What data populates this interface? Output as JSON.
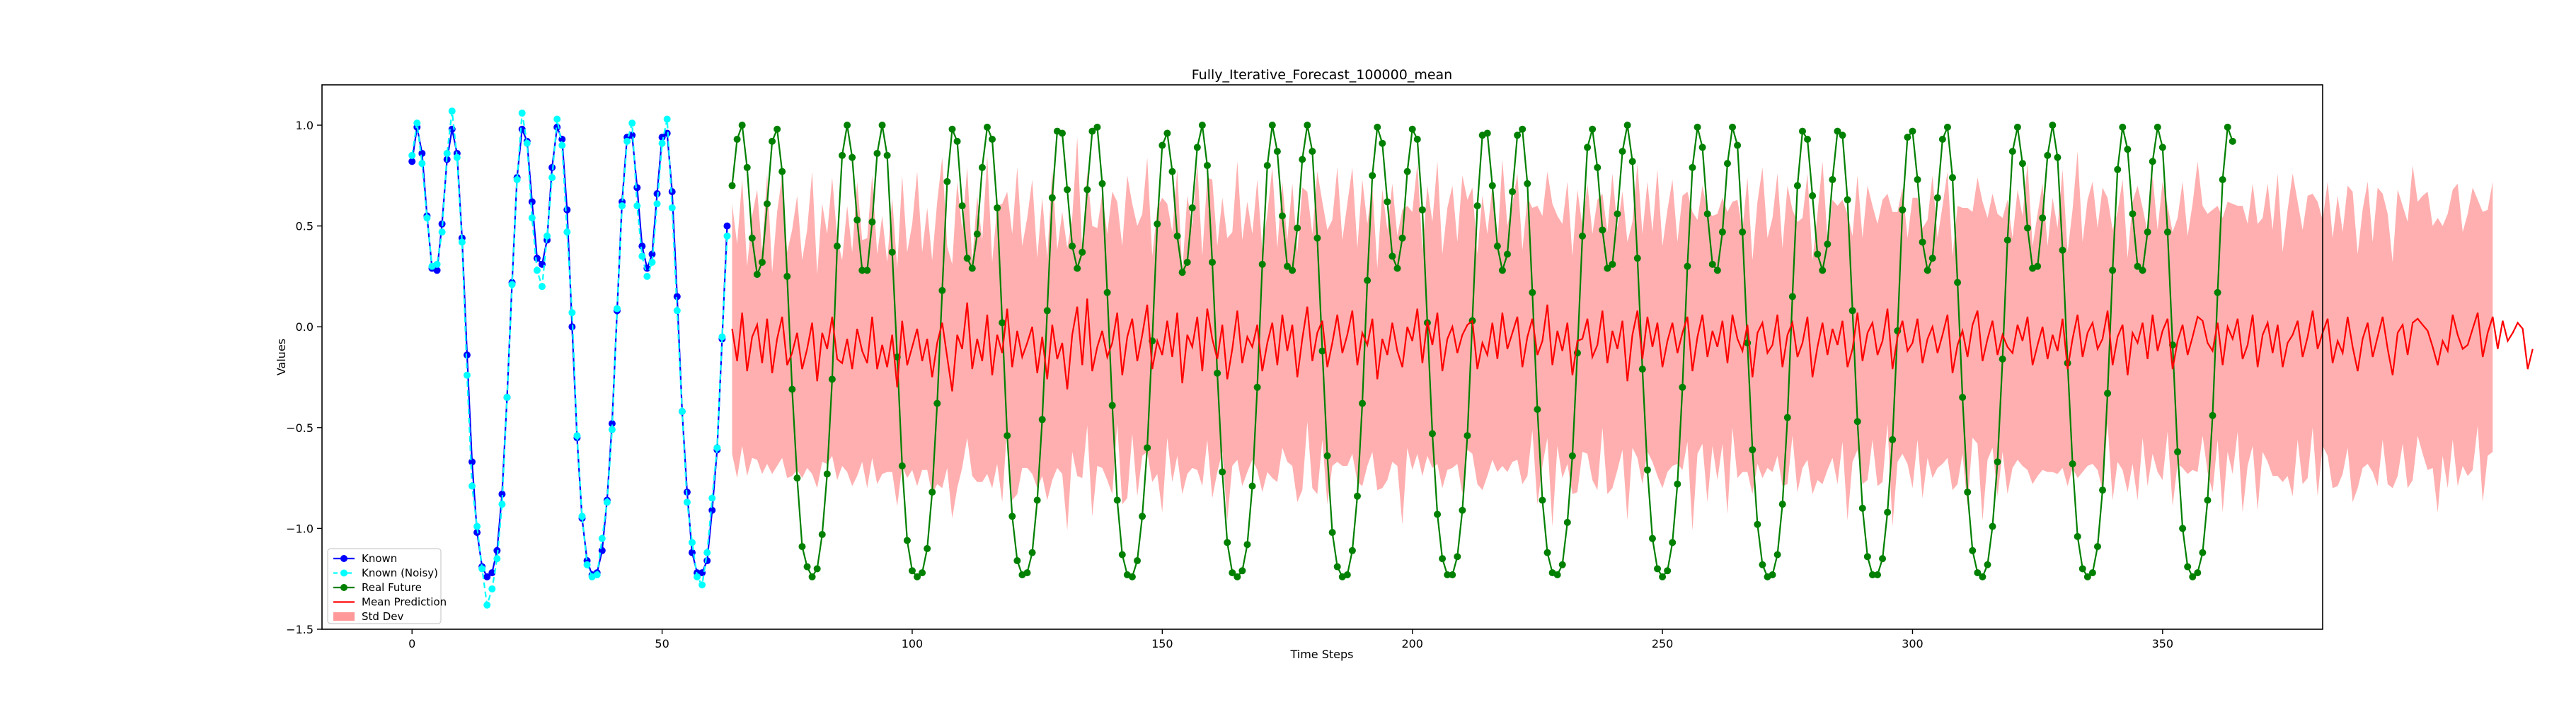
{
  "chart_data": {
    "type": "line",
    "title": "Fully_Iterative_Forecast_100000_mean",
    "xlabel": "Time Steps",
    "ylabel": "Values",
    "xlim": [
      -18,
      382
    ],
    "ylim": [
      -1.5,
      1.2
    ],
    "xticks": [
      0,
      50,
      100,
      150,
      200,
      250,
      300,
      350
    ],
    "yticks": [
      -1.5,
      -1.0,
      -0.5,
      0.0,
      0.5,
      1.0
    ],
    "xtick_labels": [
      "0",
      "50",
      "100",
      "150",
      "200",
      "250",
      "300",
      "350"
    ],
    "ytick_labels": [
      "−1.5",
      "−1.0",
      "−0.5",
      "0.0",
      "0.5",
      "1.0"
    ],
    "grid": false,
    "legend_position": "lower-left",
    "legend": [
      "Known",
      "Known (Noisy)",
      "Real Future",
      "Mean Prediction",
      "Std Dev"
    ],
    "colors": {
      "known": "#0000ff",
      "known_noisy": "#00ffff",
      "real_future": "#008000",
      "mean_prediction": "#ff0000",
      "std_dev": "#ff9999"
    },
    "series": [
      {
        "name": "Known",
        "x_start": 0,
        "values": [
          0.82,
          0.99,
          0.86,
          0.55,
          0.29,
          0.28,
          0.51,
          0.83,
          0.98,
          0.86,
          0.44,
          -0.14,
          -0.67,
          -1.02,
          -1.19,
          -1.24,
          -1.22,
          -1.11,
          -0.83,
          -0.35,
          0.22,
          0.74,
          0.98,
          0.92,
          0.62,
          0.34,
          0.31,
          0.43,
          0.79,
          0.99,
          0.93,
          0.58,
          0.0,
          -0.55,
          -0.95,
          -1.16,
          -1.23,
          -1.22,
          -1.11,
          -0.86,
          -0.48,
          0.08,
          0.62,
          0.94,
          0.95,
          0.69,
          0.4,
          0.29,
          0.36,
          0.66,
          0.94,
          0.96,
          0.67,
          0.15,
          -0.42,
          -0.82,
          -1.12,
          -1.22,
          -1.22,
          -1.16,
          -0.91,
          -0.61,
          -0.06,
          0.5
        ]
      },
      {
        "name": "Known (Noisy)",
        "x_start": 0,
        "values": [
          0.85,
          1.01,
          0.81,
          0.54,
          0.3,
          0.31,
          0.47,
          0.86,
          1.07,
          0.84,
          0.42,
          -0.24,
          -0.79,
          -0.99,
          -1.2,
          -1.38,
          -1.3,
          -1.15,
          -0.88,
          -0.35,
          0.21,
          0.73,
          1.06,
          0.91,
          0.54,
          0.28,
          0.2,
          0.45,
          0.74,
          1.03,
          0.9,
          0.47,
          0.07,
          -0.54,
          -0.94,
          -1.18,
          -1.24,
          -1.23,
          -1.05,
          -0.87,
          -0.51,
          0.09,
          0.6,
          0.92,
          1.01,
          0.6,
          0.35,
          0.25,
          0.32,
          0.61,
          0.91,
          1.03,
          0.59,
          0.08,
          -0.42,
          -0.87,
          -1.07,
          -1.24,
          -1.28,
          -1.12,
          -0.85,
          -0.6,
          -0.05,
          0.45
        ]
      },
      {
        "name": "Real Future",
        "x_start": 64,
        "values": [
          0.7,
          0.93,
          1.0,
          0.79,
          0.44,
          0.26,
          0.32,
          0.61,
          0.92,
          0.98,
          0.77,
          0.25,
          -0.31,
          -0.75,
          -1.09,
          -1.19,
          -1.24,
          -1.2,
          -1.03,
          -0.73,
          -0.26,
          0.4,
          0.85,
          1.0,
          0.84,
          0.53,
          0.28,
          0.28,
          0.52,
          0.86,
          1.0,
          0.85,
          0.37,
          -0.15,
          -0.69,
          -1.06,
          -1.21,
          -1.24,
          -1.22,
          -1.1,
          -0.82,
          -0.38,
          0.18,
          0.72,
          0.98,
          0.92,
          0.6,
          0.34,
          0.29,
          0.46,
          0.79,
          0.99,
          0.93,
          0.59,
          0.02,
          -0.54,
          -0.94,
          -1.16,
          -1.23,
          -1.22,
          -1.12,
          -0.86,
          -0.46,
          0.08,
          0.64,
          0.97,
          0.96,
          0.68,
          0.4,
          0.29,
          0.37,
          0.68,
          0.97,
          0.99,
          0.71,
          0.17,
          -0.39,
          -0.86,
          -1.13,
          -1.23,
          -1.24,
          -1.16,
          -0.94,
          -0.6,
          -0.07,
          0.51,
          0.9,
          0.96,
          0.77,
          0.45,
          0.27,
          0.32,
          0.59,
          0.89,
          1.0,
          0.8,
          0.32,
          -0.23,
          -0.72,
          -1.07,
          -1.22,
          -1.24,
          -1.21,
          -1.08,
          -0.79,
          -0.3,
          0.31,
          0.8,
          1.0,
          0.87,
          0.55,
          0.3,
          0.28,
          0.49,
          0.83,
          1.0,
          0.87,
          0.44,
          -0.12,
          -0.64,
          -1.02,
          -1.19,
          -1.24,
          -1.23,
          -1.11,
          -0.84,
          -0.38,
          0.23,
          0.75,
          0.99,
          0.91,
          0.62,
          0.35,
          0.29,
          0.44,
          0.77,
          0.98,
          0.93,
          0.58,
          0.02,
          -0.53,
          -0.93,
          -1.15,
          -1.23,
          -1.23,
          -1.14,
          -0.91,
          -0.54,
          0.03,
          0.6,
          0.95,
          0.96,
          0.7,
          0.4,
          0.28,
          0.36,
          0.67,
          0.95,
          0.98,
          0.71,
          0.17,
          -0.41,
          -0.86,
          -1.12,
          -1.22,
          -1.23,
          -1.18,
          -0.97,
          -0.64,
          -0.13,
          0.45,
          0.89,
          0.98,
          0.79,
          0.48,
          0.29,
          0.31,
          0.56,
          0.87,
          1.0,
          0.82,
          0.34,
          -0.21,
          -0.71,
          -1.05,
          -1.2,
          -1.24,
          -1.21,
          -1.07,
          -0.78,
          -0.3,
          0.3,
          0.79,
          0.99,
          0.89,
          0.56,
          0.31,
          0.28,
          0.47,
          0.81,
          0.99,
          0.9,
          0.47,
          -0.08,
          -0.61,
          -0.98,
          -1.18,
          -1.24,
          -1.23,
          -1.13,
          -0.88,
          -0.45,
          0.15,
          0.7,
          0.97,
          0.93,
          0.65,
          0.36,
          0.28,
          0.41,
          0.73,
          0.97,
          0.95,
          0.63,
          0.08,
          -0.47,
          -0.9,
          -1.14,
          -1.23,
          -1.23,
          -1.15,
          -0.92,
          -0.56,
          -0.02,
          0.58,
          0.94,
          0.97,
          0.73,
          0.42,
          0.28,
          0.34,
          0.64,
          0.93,
          0.99,
          0.74,
          0.22,
          -0.35,
          -0.82,
          -1.11,
          -1.22,
          -1.24,
          -1.18,
          -0.99,
          -0.67,
          -0.16,
          0.43,
          0.87,
          0.99,
          0.81,
          0.49,
          0.29,
          0.3,
          0.54,
          0.85,
          1.0,
          0.84,
          0.38,
          -0.18,
          -0.68,
          -1.04,
          -1.2,
          -1.24,
          -1.22,
          -1.09,
          -0.81,
          -0.33,
          0.28,
          0.78,
          0.99,
          0.88,
          0.56,
          0.3,
          0.28,
          0.47,
          0.82,
          0.99,
          0.89,
          0.47,
          -0.09,
          -0.62,
          -1.0,
          -1.19,
          -1.24,
          -1.22,
          -1.12,
          -0.86,
          -0.44,
          0.17,
          0.73,
          0.99,
          0.92
        ]
      },
      {
        "name": "Mean Prediction",
        "x_start": 64,
        "values": [
          -0.01,
          -0.17,
          0.07,
          -0.22,
          -0.05,
          0.01,
          -0.18,
          0.04,
          -0.23,
          -0.06,
          0.05,
          -0.19,
          -0.13,
          -0.03,
          -0.21,
          -0.11,
          0.02,
          -0.27,
          -0.03,
          -0.11,
          0.05,
          -0.16,
          -0.18,
          -0.06,
          -0.21,
          -0.01,
          -0.12,
          -0.18,
          0.05,
          -0.21,
          -0.09,
          -0.2,
          -0.04,
          -0.3,
          0.03,
          -0.19,
          -0.1,
          -0.01,
          -0.17,
          -0.06,
          -0.25,
          -0.08,
          0.02,
          -0.15,
          -0.32,
          -0.04,
          -0.11,
          0.12,
          -0.21,
          -0.06,
          -0.17,
          0.06,
          -0.24,
          -0.04,
          -0.13,
          0.09,
          -0.2,
          -0.02,
          -0.15,
          -0.08,
          0.0,
          -0.23,
          -0.05,
          -0.26,
          0.01,
          -0.16,
          -0.08,
          -0.31,
          -0.04,
          0.1,
          -0.19,
          0.14,
          -0.22,
          -0.1,
          -0.02,
          -0.15,
          -0.08,
          0.07,
          -0.24,
          -0.05,
          0.04,
          -0.17,
          -0.04,
          0.11,
          -0.21,
          -0.07,
          -0.14,
          0.03,
          -0.15,
          0.07,
          -0.28,
          -0.04,
          -0.1,
          0.05,
          -0.22,
          0.09,
          -0.06,
          -0.16,
          0.01,
          -0.26,
          -0.11,
          0.08,
          -0.18,
          -0.05,
          -0.1,
          0.01,
          -0.22,
          -0.08,
          0.02,
          -0.19,
          0.06,
          -0.12,
          0.01,
          -0.25,
          -0.06,
          0.1,
          -0.17,
          -0.03,
          0.03,
          -0.2,
          -0.08,
          0.06,
          -0.13,
          -0.04,
          0.08,
          -0.19,
          -0.03,
          -0.09,
          0.04,
          -0.26,
          -0.06,
          -0.14,
          0.02,
          -0.12,
          -0.2,
          0.0,
          -0.07,
          0.09,
          -0.18,
          0.03,
          -0.09,
          0.07,
          -0.22,
          -0.06,
          0.0,
          -0.13,
          -0.04,
          0.01,
          0.03,
          -0.21,
          -0.08,
          -0.14,
          0.02,
          -0.16,
          0.07,
          -0.11,
          -0.03,
          0.05,
          -0.2,
          -0.05,
          0.04,
          -0.14,
          -0.07,
          0.11,
          -0.19,
          -0.02,
          -0.12,
          0.02,
          -0.24,
          -0.07,
          -0.06,
          0.04,
          -0.15,
          -0.09,
          0.08,
          -0.18,
          -0.02,
          -0.11,
          0.03,
          -0.27,
          -0.04,
          0.08,
          -0.16,
          0.05,
          -0.1,
          0.02,
          -0.2,
          -0.07,
          0.02,
          -0.13,
          -0.03,
          0.05,
          -0.22,
          -0.05,
          0.06,
          -0.15,
          -0.02,
          -0.1,
          0.03,
          -0.18,
          0.06,
          -0.06,
          -0.12,
          0.01,
          -0.25,
          -0.03,
          0.02,
          -0.13,
          -0.09,
          0.06,
          -0.2,
          -0.04,
          0.02,
          -0.15,
          -0.08,
          0.05,
          -0.25,
          -0.1,
          0.02,
          -0.14,
          -0.01,
          -0.09,
          0.03,
          -0.2,
          -0.11,
          0.07,
          -0.17,
          -0.03,
          0.02,
          -0.14,
          -0.07,
          0.09,
          -0.21,
          -0.05,
          0.03,
          -0.12,
          -0.08,
          0.04,
          -0.18,
          -0.06,
          0.0,
          -0.13,
          -0.04,
          0.06,
          -0.23,
          -0.09,
          -0.02,
          -0.15,
          0.01,
          0.08,
          -0.17,
          -0.06,
          0.03,
          -0.14,
          -0.04,
          -0.1,
          -0.13,
          0.01,
          -0.07,
          0.05,
          -0.19,
          -0.09,
          0.0,
          -0.16,
          -0.04,
          -0.12,
          0.04,
          -0.21,
          -0.06,
          0.06,
          -0.15,
          -0.03,
          0.02,
          -0.11,
          -0.06,
          0.08,
          -0.19,
          -0.05,
          0.01,
          -0.24,
          -0.03,
          -0.08,
          0.02,
          -0.16,
          0.06,
          -0.12,
          -0.02,
          0.04,
          -0.21,
          -0.07,
          0.01,
          -0.14,
          -0.05,
          0.05,
          0.03,
          -0.08,
          -0.12,
          0.02,
          -0.19,
          0.0,
          -0.06,
          0.04,
          -0.16,
          -0.09,
          0.06,
          -0.2,
          -0.04,
          0.02,
          -0.13,
          0.01,
          -0.2,
          -0.08,
          -0.04,
          0.03,
          -0.15,
          -0.05,
          0.08,
          -0.11,
          -0.03,
          0.04,
          -0.18,
          -0.07,
          -0.13,
          0.05,
          -0.1,
          -0.22,
          -0.06,
          0.02,
          -0.15,
          -0.05,
          0.05,
          -0.11,
          -0.24,
          -0.03,
          0.01,
          -0.14,
          0.02,
          0.04,
          0.01,
          -0.02,
          -0.1,
          -0.19,
          -0.07,
          -0.12,
          0.06,
          -0.04,
          -0.11,
          -0.09,
          -0.01,
          0.07,
          -0.15,
          -0.03,
          0.05,
          -0.11,
          0.03,
          -0.07,
          -0.03,
          0.02,
          -0.01,
          -0.21,
          -0.11
        ]
      }
    ],
    "std_dev": {
      "x_start": 64,
      "band_width": [
        0.62,
        0.58,
        0.66,
        0.52,
        0.6,
        0.67,
        0.55,
        0.72,
        0.5,
        0.63,
        0.7,
        0.56,
        0.61,
        0.68,
        0.54,
        0.59,
        0.75,
        0.53,
        0.64,
        0.57,
        0.69,
        0.6,
        0.51,
        0.66,
        0.58,
        0.73,
        0.55,
        0.62,
        0.7,
        0.57,
        0.64,
        0.52,
        0.68,
        0.59,
        0.72,
        0.56,
        0.61,
        0.78,
        0.54,
        0.65,
        0.58,
        0.7,
        0.82,
        0.55,
        0.63,
        0.76,
        0.59,
        0.67,
        0.53,
        0.71,
        0.6,
        0.79,
        0.56,
        0.64,
        0.74,
        0.58,
        0.66,
        0.81,
        0.55,
        0.62,
        0.73,
        0.57,
        0.69,
        0.6,
        0.77,
        0.54,
        0.65,
        0.7,
        0.58,
        0.84,
        0.56,
        0.63,
        0.72,
        0.59,
        0.68,
        0.61,
        0.75,
        0.55,
        0.64,
        0.8,
        0.57,
        0.67,
        0.6,
        0.73,
        0.56,
        0.66,
        0.78,
        0.58,
        0.62,
        0.71,
        0.55,
        0.69,
        0.6,
        0.76,
        0.57,
        0.65,
        0.79,
        0.56,
        0.63,
        0.7,
        0.58,
        0.74,
        0.61,
        0.67,
        0.56,
        0.72,
        0.6,
        0.64,
        0.77,
        0.58,
        0.66,
        0.55,
        0.7,
        0.62,
        0.75,
        0.57,
        0.63,
        0.8,
        0.59,
        0.68,
        0.61,
        0.73,
        0.56,
        0.65,
        0.71,
        0.58,
        0.76,
        0.6,
        0.66,
        0.55,
        0.74,
        0.62,
        0.69,
        0.57,
        0.78,
        0.6,
        0.64,
        0.72,
        0.56,
        0.67,
        0.61,
        0.75,
        0.58,
        0.65,
        0.7,
        0.55,
        0.79,
        0.62,
        0.66,
        0.57,
        0.73,
        0.6,
        0.68,
        0.56,
        0.76,
        0.61,
        0.64,
        0.71,
        0.58,
        0.69,
        0.55,
        0.74,
        0.62,
        0.66,
        0.8,
        0.57,
        0.63,
        0.7,
        0.59,
        0.75,
        0.56,
        0.67,
        0.61,
        0.72,
        0.58,
        0.65,
        0.78,
        0.6,
        0.64,
        0.69,
        0.56,
        0.73,
        0.62,
        0.67,
        0.57,
        0.76,
        0.6,
        0.65,
        0.71,
        0.55,
        0.68,
        0.62,
        0.79,
        0.58,
        0.64,
        0.72,
        0.57,
        0.66,
        0.61,
        0.75,
        0.56,
        0.69,
        0.6,
        0.73,
        0.58,
        0.65,
        0.77,
        0.57,
        0.63,
        0.7,
        0.59,
        0.74,
        0.56,
        0.67,
        0.62,
        0.71,
        0.58,
        0.66,
        0.8,
        0.57,
        0.64,
        0.69,
        0.6,
        0.76,
        0.56,
        0.68,
        0.61,
        0.73,
        0.58,
        0.65,
        0.7,
        0.57,
        0.78,
        0.62,
        0.66,
        0.56,
        0.72,
        0.6,
        0.67,
        0.59,
        0.75,
        0.57,
        0.64,
        0.71,
        0.58,
        0.69,
        0.61,
        0.74,
        0.56,
        0.66,
        0.79,
        0.6,
        0.63,
        0.7,
        0.58,
        0.73,
        0.57,
        0.67,
        0.62,
        0.76,
        0.59,
        0.65,
        0.71,
        0.56,
        0.68,
        0.61,
        0.74,
        0.58,
        0.64,
        0.81,
        0.57,
        0.66,
        0.7,
        0.6,
        0.75,
        0.56,
        0.67,
        0.62,
        0.72,
        0.58,
        0.65,
        0.78,
        0.57,
        0.63,
        0.69,
        0.6,
        0.74,
        0.56,
        0.68,
        0.61,
        0.71,
        0.59,
        0.66,
        0.77,
        0.57,
        0.64,
        0.7,
        0.58,
        0.73,
        0.62,
        0.67,
        0.56,
        0.76,
        0.6,
        0.65,
        0.71,
        0.58,
        0.69,
        0.61,
        0.75,
        0.57,
        0.66,
        0.8,
        0.59,
        0.63,
        0.7,
        0.58,
        0.73,
        0.56,
        0.68,
        0.62,
        0.72,
        0.6,
        0.65,
        0.77,
        0.58,
        0.64,
        0.7,
        0.57,
        0.74,
        0.61,
        0.67,
        0.56,
        0.71,
        0.59,
        0.66,
        0.78,
        0.58,
        0.64,
        0.69,
        0.6,
        0.73,
        0.57,
        0.68,
        0.62,
        0.75,
        0.58,
        0.65,
        0.7,
        0.56,
        0.72,
        0.61,
        0.67
      ]
    }
  }
}
